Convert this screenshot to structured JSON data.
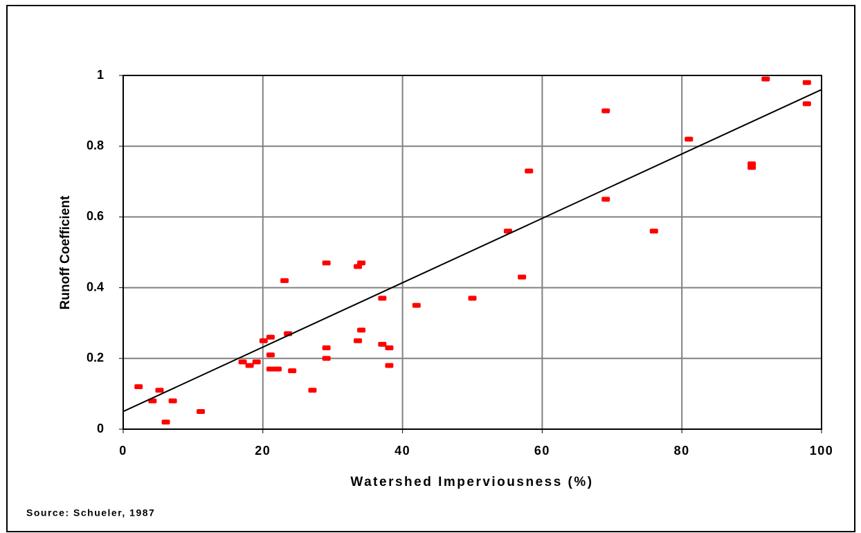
{
  "chart_data": {
    "type": "scatter",
    "xlabel": "Watershed Imperviousness (%)",
    "ylabel": "Runoff Coefficient",
    "source": "Source: Schueler, 1987",
    "color": "#ff0000",
    "x": [
      2.2,
      4.2,
      5.2,
      6.1,
      7.1,
      11.1,
      17.1,
      18.1,
      19.1,
      20.1,
      21.1,
      21.1,
      21.1,
      22.1,
      23.1,
      23.6,
      24.2,
      27.1,
      29.1,
      29.1,
      29.1,
      33.6,
      34.1,
      33.6,
      34.1,
      37.1,
      37.1,
      38.1,
      38.1,
      42.0,
      50.0,
      55.1,
      57.1,
      58.1,
      69.1,
      69.1,
      76.0,
      81.0,
      90.0,
      90.0,
      92.0,
      97.9,
      97.9
    ],
    "values": [
      0.12,
      0.08,
      0.11,
      0.02,
      0.08,
      0.05,
      0.19,
      0.18,
      0.19,
      0.25,
      0.26,
      0.21,
      0.17,
      0.17,
      0.42,
      0.27,
      0.165,
      0.11,
      0.47,
      0.23,
      0.2,
      0.46,
      0.47,
      0.25,
      0.28,
      0.37,
      0.24,
      0.23,
      0.18,
      0.35,
      0.37,
      0.56,
      0.43,
      0.73,
      0.9,
      0.65,
      0.56,
      0.82,
      0.74,
      0.75,
      0.99,
      0.98,
      0.92
    ],
    "trend": {
      "x": [
        0,
        100
      ],
      "values": [
        0.05,
        0.96
      ]
    },
    "xlim": [
      0,
      100
    ],
    "xticks": [
      0,
      20,
      40,
      60,
      80,
      100
    ],
    "ylim": [
      0,
      1
    ],
    "yticks": [
      0,
      0.2,
      0.4,
      0.6,
      0.8,
      1
    ],
    "grid": true
  }
}
